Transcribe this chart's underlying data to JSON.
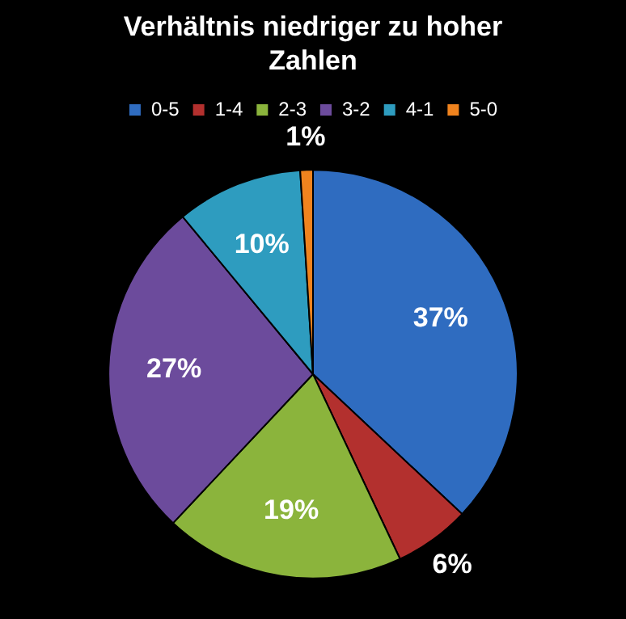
{
  "chart_data": {
    "type": "pie",
    "title": "Verhältnis niedriger zu hoher Zahlen",
    "categories": [
      "0-5",
      "1-4",
      "2-3",
      "3-2",
      "4-1",
      "5-0"
    ],
    "values": [
      37,
      6,
      19,
      27,
      10,
      1
    ],
    "colors": [
      "#2f6cc0",
      "#b3302e",
      "#8bb43c",
      "#6c4b9c",
      "#2e9cbf",
      "#f0831e"
    ],
    "value_labels": [
      "37%",
      "6%",
      "19%",
      "27%",
      "10%",
      "1%"
    ],
    "legend": "top"
  }
}
